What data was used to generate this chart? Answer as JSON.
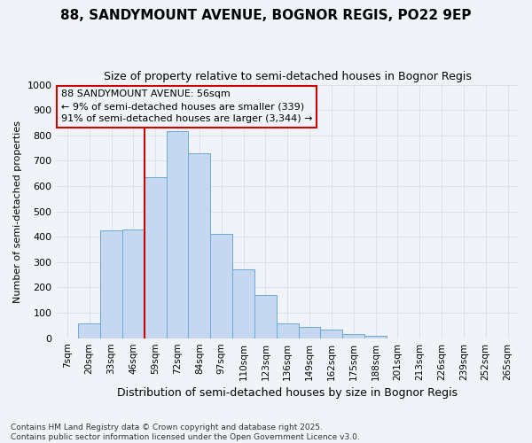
{
  "title": "88, SANDYMOUNT AVENUE, BOGNOR REGIS, PO22 9EP",
  "subtitle": "Size of property relative to semi-detached houses in Bognor Regis",
  "xlabel": "Distribution of semi-detached houses by size in Bognor Regis",
  "ylabel": "Number of semi-detached properties",
  "categories": [
    "7sqm",
    "20sqm",
    "33sqm",
    "46sqm",
    "59sqm",
    "72sqm",
    "84sqm",
    "97sqm",
    "110sqm",
    "123sqm",
    "136sqm",
    "149sqm",
    "162sqm",
    "175sqm",
    "188sqm",
    "201sqm",
    "213sqm",
    "226sqm",
    "239sqm",
    "252sqm",
    "265sqm"
  ],
  "values": [
    0,
    60,
    425,
    430,
    635,
    815,
    730,
    410,
    270,
    170,
    60,
    45,
    35,
    15,
    10,
    0,
    0,
    0,
    0,
    0,
    0
  ],
  "bar_color": "#c5d8f0",
  "bar_edge_color": "#6aaad4",
  "grid_color": "#d0dce8",
  "bg_color": "#f0f4f8",
  "property_line_color": "#cc0000",
  "property_line_x": 4.5,
  "annotation_text": "88 SANDYMOUNT AVENUE: 56sqm\n← 9% of semi-detached houses are smaller (339)\n91% of semi-detached houses are larger (3,344) →",
  "annotation_box_edgecolor": "#cc0000",
  "footer_text": "Contains HM Land Registry data © Crown copyright and database right 2025.\nContains public sector information licensed under the Open Government Licence v3.0.",
  "ylim": [
    0,
    1000
  ],
  "yticks": [
    0,
    100,
    200,
    300,
    400,
    500,
    600,
    700,
    800,
    900,
    1000
  ],
  "fig_width": 6.0,
  "fig_height": 5.0,
  "dpi": 100
}
